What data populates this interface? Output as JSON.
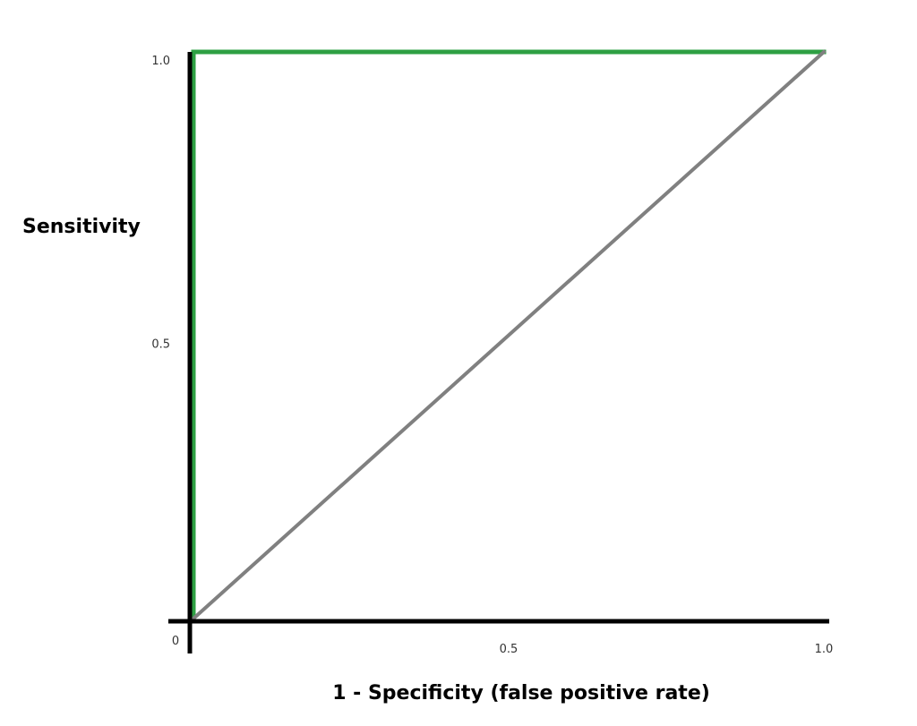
{
  "chart_data": {
    "type": "line",
    "title": "",
    "xlabel": "1 - Specificity (false positive rate)",
    "ylabel": "Sensitivity",
    "xlim": [
      0,
      1
    ],
    "ylim": [
      0,
      1
    ],
    "grid": false,
    "legend": "none",
    "origin_label": "0",
    "x_ticks": [
      {
        "value": 0.5,
        "label": "0.5"
      },
      {
        "value": 1.0,
        "label": "1.0"
      }
    ],
    "y_ticks": [
      {
        "value": 0.5,
        "label": "0.5"
      },
      {
        "value": 1.0,
        "label": "1.0"
      }
    ],
    "series": [
      {
        "x": [
          0,
          0,
          1
        ],
        "y": [
          0,
          1,
          1
        ],
        "color": "#2ea043"
      },
      {
        "x": [
          0,
          1
        ],
        "y": [
          0,
          1
        ],
        "color": "#808080"
      }
    ],
    "axis_color": "#000000"
  }
}
